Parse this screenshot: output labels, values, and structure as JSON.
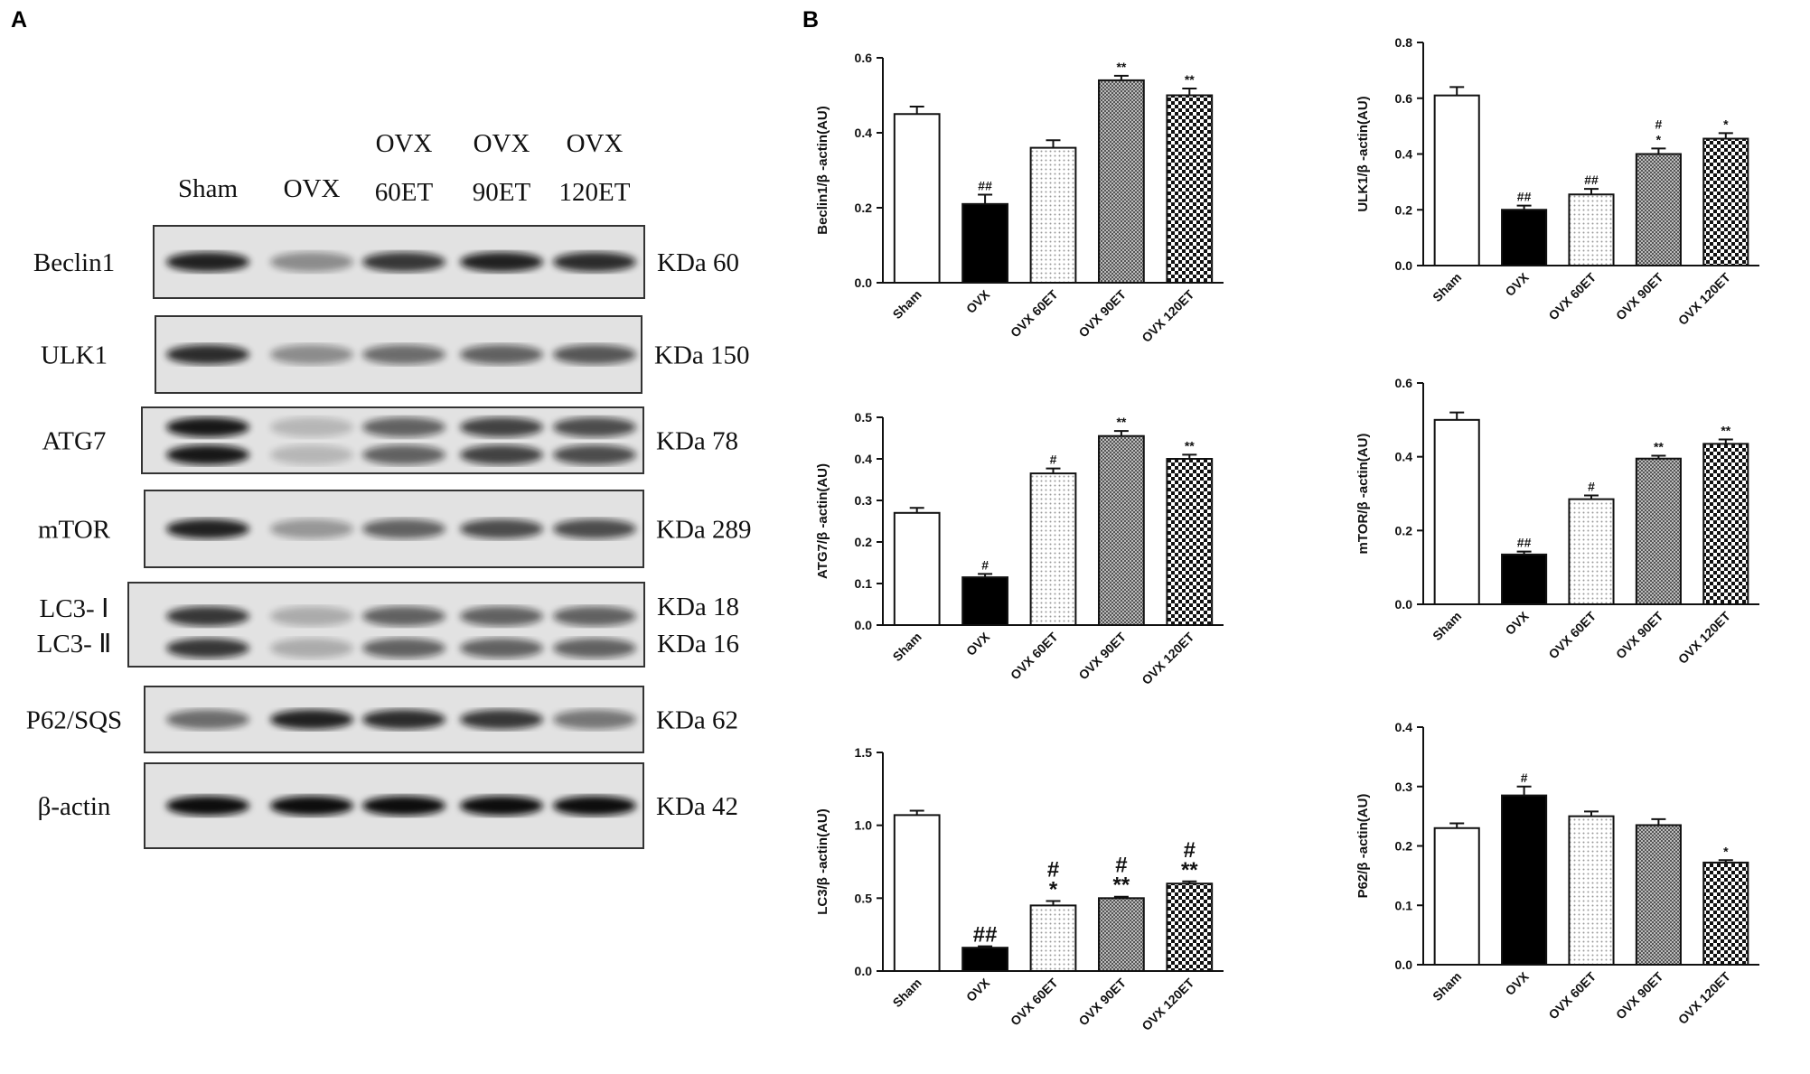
{
  "blot": {
    "panel_label": "A",
    "lanes": [
      [
        "Sham"
      ],
      [
        "OVX"
      ],
      [
        "OVX",
        "60ET"
      ],
      [
        "OVX",
        "90ET"
      ],
      [
        "OVX",
        "120ET"
      ]
    ],
    "rows": [
      {
        "labels": [
          "Beclin1"
        ],
        "kda": [
          "KDa 60"
        ]
      },
      {
        "labels": [
          "ULK1"
        ],
        "kda": [
          "KDa 150"
        ]
      },
      {
        "labels": [
          "ATG7"
        ],
        "kda": [
          "KDa 78"
        ]
      },
      {
        "labels": [
          "mTOR"
        ],
        "kda": [
          "KDa 289"
        ]
      },
      {
        "labels": [
          "LC3- Ⅰ",
          "LC3- Ⅱ"
        ],
        "kda": [
          "KDa 18",
          "KDa 16"
        ]
      },
      {
        "labels": [
          "P62/SQS"
        ],
        "kda": [
          "KDa 62"
        ]
      },
      {
        "labels": [
          "β-actin"
        ],
        "kda": [
          "KDa 42"
        ]
      }
    ]
  },
  "panel_b_label": "B",
  "chart_data": [
    {
      "type": "bar",
      "ylabel": "Beclin1/β -actin(AU)",
      "categories": [
        "Sham",
        "OVX",
        "OVX 60ET",
        "OVX 90ET",
        "OVX 120ET"
      ],
      "values": [
        0.45,
        0.21,
        0.36,
        0.54,
        0.5
      ],
      "errors": [
        0.02,
        0.025,
        0.02,
        0.012,
        0.018
      ],
      "annotations": [
        null,
        [
          "##"
        ],
        null,
        [
          "**"
        ],
        [
          "**"
        ]
      ],
      "fills": [
        "white",
        "black",
        "dots",
        "fine-check",
        "checker"
      ],
      "ylim": [
        0,
        0.6
      ],
      "yticks": [
        {
          "value": 0,
          "label": "0.0"
        },
        0.2,
        0.4,
        0.6
      ]
    },
    {
      "type": "bar",
      "ylabel": "ULK1/β -actin(AU)",
      "categories": [
        "Sham",
        "OVX",
        "OVX 60ET",
        "OVX 90ET",
        "OVX 120ET"
      ],
      "values": [
        0.61,
        0.2,
        0.255,
        0.4,
        0.455
      ],
      "errors": [
        0.03,
        0.015,
        0.02,
        0.02,
        0.02
      ],
      "annotations": [
        null,
        [
          "##"
        ],
        [
          "##"
        ],
        [
          "#",
          "*"
        ],
        [
          "*"
        ]
      ],
      "fills": [
        "white",
        "black",
        "dots",
        "fine-check",
        "checker"
      ],
      "ylim": [
        0,
        0.8
      ],
      "yticks": [
        {
          "value": 0,
          "label": "0.0"
        },
        0.2,
        0.4,
        0.6,
        0.8
      ]
    },
    {
      "type": "bar",
      "ylabel": "ATG7/β -actin(AU)",
      "categories": [
        "Sham",
        "OVX",
        "OVX 60ET",
        "OVX 90ET",
        "OVX 120ET"
      ],
      "values": [
        0.27,
        0.115,
        0.365,
        0.455,
        0.4
      ],
      "errors": [
        0.012,
        0.008,
        0.012,
        0.012,
        0.01
      ],
      "annotations": [
        null,
        [
          "#"
        ],
        [
          "#"
        ],
        [
          "**"
        ],
        [
          "**"
        ]
      ],
      "fills": [
        "white",
        "black",
        "dots",
        "fine-check",
        "checker"
      ],
      "ylim": [
        0,
        0.5
      ],
      "yticks": [
        {
          "value": 0,
          "label": "0.0"
        },
        0.1,
        0.2,
        0.3,
        0.4,
        0.5
      ]
    },
    {
      "type": "bar",
      "ylabel": "mTOR/β -actin(AU)",
      "categories": [
        "Sham",
        "OVX",
        "OVX 60ET",
        "OVX 90ET",
        "OVX 120ET"
      ],
      "values": [
        0.5,
        0.135,
        0.285,
        0.395,
        0.435
      ],
      "errors": [
        0.02,
        0.008,
        0.01,
        0.008,
        0.012
      ],
      "annotations": [
        null,
        [
          "##"
        ],
        [
          "#"
        ],
        [
          "**"
        ],
        [
          "**"
        ]
      ],
      "fills": [
        "white",
        "black",
        "dots",
        "fine-check",
        "checker"
      ],
      "ylim": [
        0,
        0.6
      ],
      "yticks": [
        {
          "value": 0,
          "label": "0.0"
        },
        0.2,
        0.4,
        0.6
      ]
    },
    {
      "type": "bar",
      "ylabel": "LC3/β -actin(AU)",
      "categories": [
        "Sham",
        "OVX",
        "OVX 60ET",
        "OVX 90ET",
        "OVX 120ET"
      ],
      "values": [
        1.07,
        0.16,
        0.45,
        0.5,
        0.6
      ],
      "errors": [
        0.03,
        0.01,
        0.03,
        0.01,
        0.015
      ],
      "annotations": [
        null,
        [
          "##"
        ],
        [
          "#",
          "*"
        ],
        [
          "#",
          "**"
        ],
        [
          "#",
          "**"
        ]
      ],
      "fills": [
        "white",
        "black",
        "dots",
        "fine-check",
        "checker"
      ],
      "ylim": [
        0,
        1.5
      ],
      "yticks": [
        {
          "value": 0,
          "label": "0.0"
        },
        0.5,
        {
          "value": 1,
          "label": "1.0"
        },
        1.5
      ]
    },
    {
      "type": "bar",
      "ylabel": "P62/β -actin(AU)",
      "categories": [
        "Sham",
        "OVX",
        "OVX 60ET",
        "OVX 90ET",
        "OVX 120ET"
      ],
      "values": [
        0.23,
        0.285,
        0.25,
        0.235,
        0.172
      ],
      "errors": [
        0.008,
        0.015,
        0.008,
        0.01,
        0.004
      ],
      "annotations": [
        null,
        [
          "#"
        ],
        null,
        null,
        [
          "*"
        ]
      ],
      "fills": [
        "white",
        "black",
        "dots",
        "fine-check",
        "checker"
      ],
      "ylim": [
        0,
        0.4
      ],
      "yticks": [
        {
          "value": 0,
          "label": "0.0"
        },
        0.1,
        0.2,
        0.3,
        0.4
      ]
    }
  ]
}
